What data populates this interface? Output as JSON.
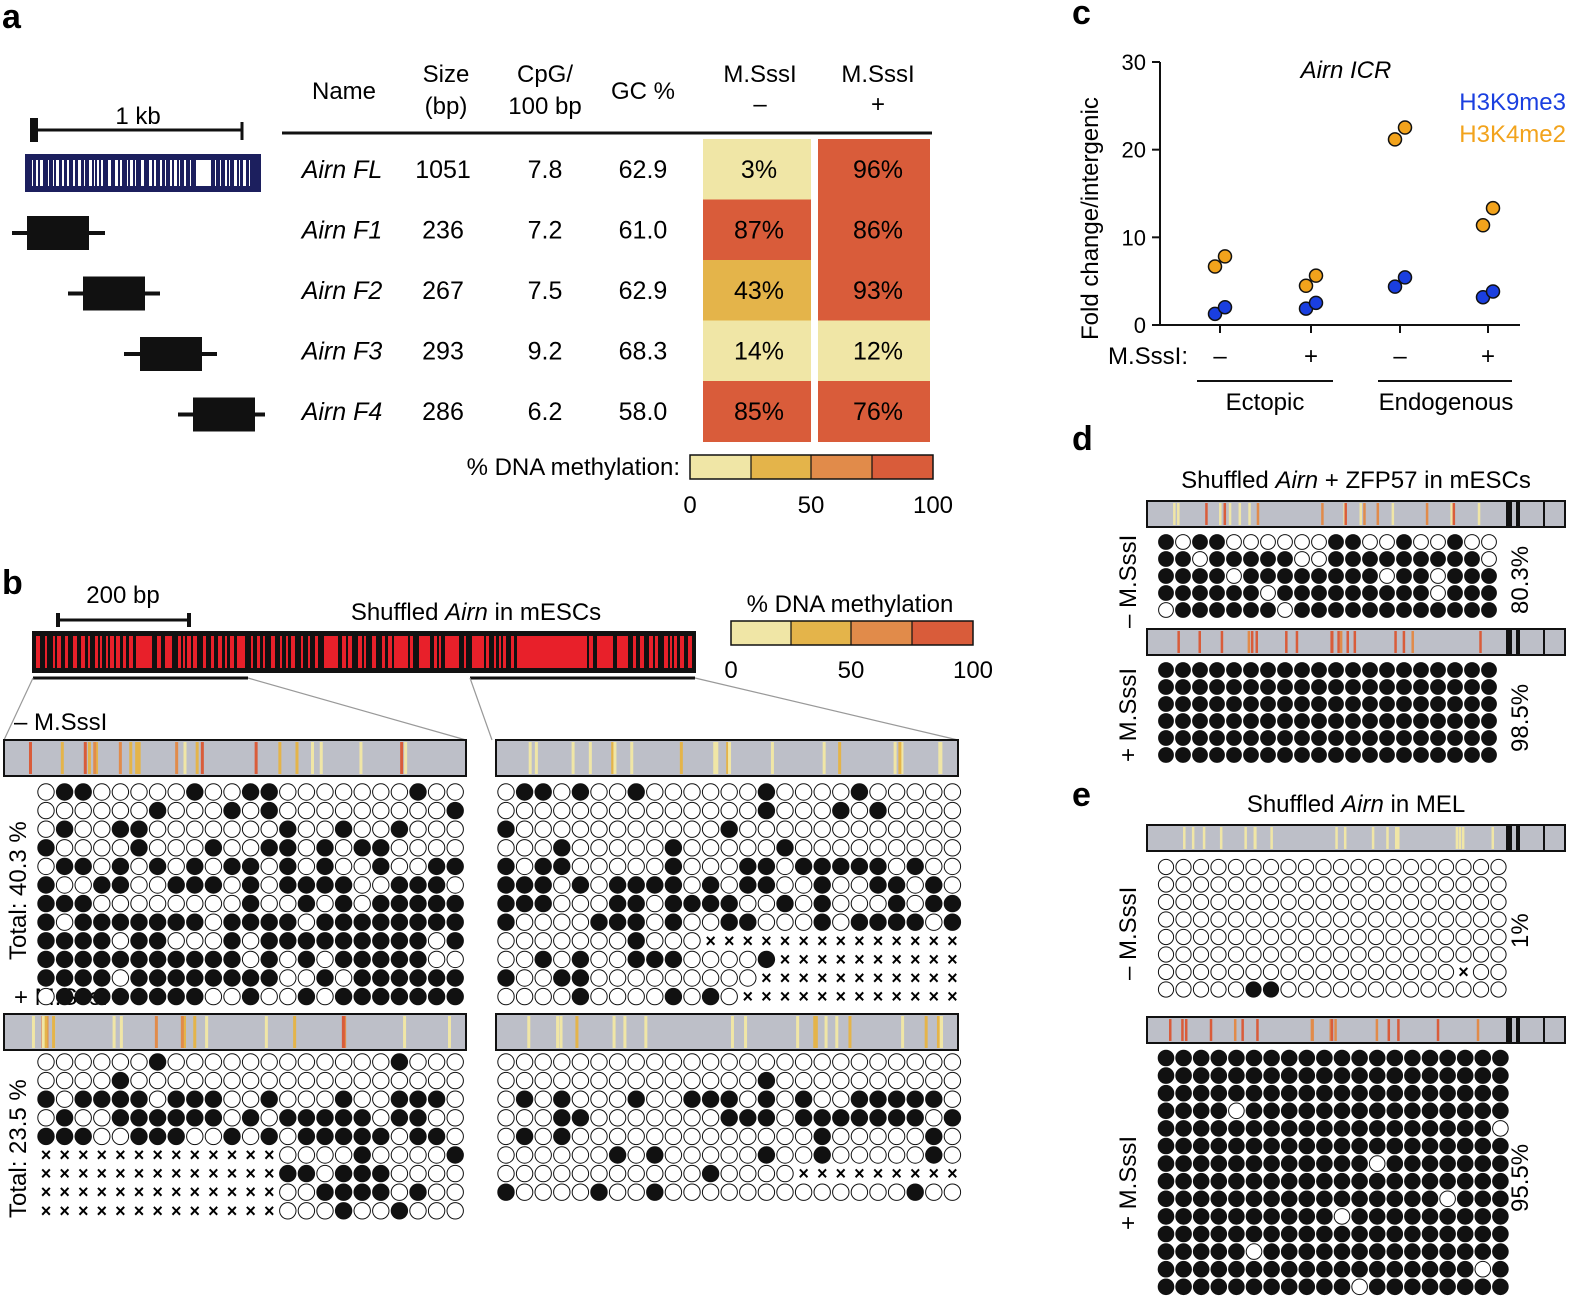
{
  "panel_a": {
    "letter": "a",
    "scale_label": "1 kb",
    "headers": {
      "name": "Name",
      "size": [
        "Size",
        "(bp)"
      ],
      "cpg": [
        "CpG/",
        "100 bp"
      ],
      "gc": "GC %",
      "msssi_minus": [
        "M.SssI",
        "–"
      ],
      "msssi_plus": [
        "M.SssI",
        "+"
      ]
    },
    "rows": [
      {
        "name": "Airn FL",
        "size": "1051",
        "cpg": "7.8",
        "gc": "62.9",
        "minus": 3,
        "plus": 96,
        "minus_label": "3%",
        "plus_label": "96%"
      },
      {
        "name": "Airn F1",
        "size": "236",
        "cpg": "7.2",
        "gc": "61.0",
        "minus": 87,
        "plus": 86,
        "minus_label": "87%",
        "plus_label": "86%"
      },
      {
        "name": "Airn F2",
        "size": "267",
        "cpg": "7.5",
        "gc": "62.9",
        "minus": 43,
        "plus": 93,
        "minus_label": "43%",
        "plus_label": "93%"
      },
      {
        "name": "Airn F3",
        "size": "293",
        "cpg": "9.2",
        "gc": "68.3",
        "minus": 14,
        "plus": 12,
        "minus_label": "14%",
        "plus_label": "12%"
      },
      {
        "name": "Airn F4",
        "size": "286",
        "cpg": "6.2",
        "gc": "58.0",
        "minus": 85,
        "plus": 76,
        "minus_label": "85%",
        "plus_label": "76%"
      }
    ],
    "colorbar_label": "% DNA methylation:",
    "colorbar_ticks": [
      "0",
      "50",
      "100"
    ]
  },
  "panel_b": {
    "letter": "b",
    "scale_label": "200 bp",
    "title_pre": "Shuffled ",
    "title_italic": "Airn",
    "title_post": " in mESCs",
    "colorbar_label": "% DNA methylation",
    "colorbar_ticks": [
      "0",
      "50",
      "100"
    ],
    "minus_label": "– M.SssI",
    "plus_label": "+ M.SssI",
    "minus_total": "Total: 40.3 %",
    "plus_total": "Total: 23.5 %"
  },
  "panel_c": {
    "letter": "c",
    "chart_data": {
      "type": "scatter",
      "title": "Airn ICR",
      "ylabel": "Fold change/intergenic",
      "ylim": [
        0,
        30
      ],
      "yticks": [
        "0",
        "10",
        "20",
        "30"
      ],
      "categories": [
        "–",
        "+",
        "–",
        "+"
      ],
      "xrow_label": "M.SssI:",
      "groups": [
        "Ectopic",
        "Endogenous"
      ],
      "series": [
        {
          "name": "H3K9me3",
          "color": "#1a3fe0",
          "values": [
            [
              1.5,
              1.8
            ],
            [
              2.1,
              2.3
            ],
            [
              4.6,
              5.2
            ],
            [
              3.4,
              3.6
            ]
          ]
        },
        {
          "name": "H3K4me2",
          "color": "#f2a31c",
          "values": [
            [
              6.9,
              7.6
            ],
            [
              4.7,
              5.4
            ],
            [
              21.4,
              22.3
            ],
            [
              11.6,
              13.1
            ]
          ]
        }
      ]
    }
  },
  "panel_d": {
    "letter": "d",
    "title_pre": "Shuffled ",
    "title_italic": "Airn",
    "title_post": " + ZFP57 in mESCs",
    "minus_label": "– M.SssI",
    "plus_label": "+ M.SssI",
    "minus_pct": "80.3%",
    "plus_pct": "98.5%"
  },
  "panel_e": {
    "letter": "e",
    "title_pre": "Shuffled ",
    "title_italic": "Airn",
    "title_post": " in MEL",
    "minus_label": "– M.SssI",
    "plus_label": "+ M.SssI",
    "minus_pct": "1%",
    "plus_pct": "95.5%"
  },
  "colors": {
    "m0": "#f0e6a6",
    "m1": "#e4b44a",
    "m2": "#e18b4a",
    "m3": "#d95c3a",
    "gray_bar": "#bdbfc8",
    "dark_blue": "#1c1f5e",
    "red": "#e8202a"
  }
}
